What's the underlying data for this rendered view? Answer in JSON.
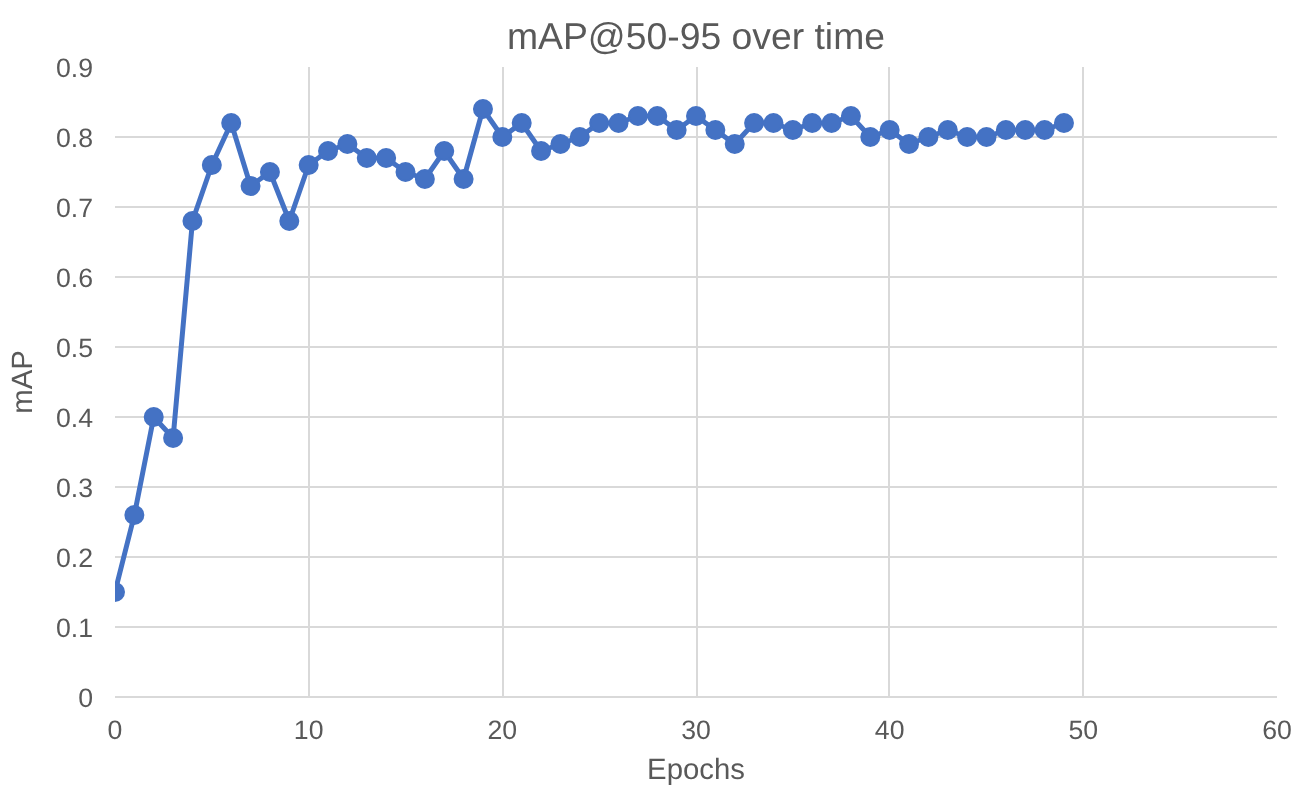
{
  "chart_data": {
    "type": "line",
    "title": "mAP@50-95 over time",
    "xlabel": "Epochs",
    "ylabel": "mAP",
    "x": [
      0,
      1,
      2,
      3,
      4,
      5,
      6,
      7,
      8,
      9,
      10,
      11,
      12,
      13,
      14,
      15,
      16,
      17,
      18,
      19,
      20,
      21,
      22,
      23,
      24,
      25,
      26,
      27,
      28,
      29,
      30,
      31,
      32,
      33,
      34,
      35,
      36,
      37,
      38,
      39,
      40,
      41,
      42,
      43,
      44,
      45,
      46,
      47,
      48,
      49
    ],
    "series": [
      {
        "color": "#4472c4",
        "values": [
          0.15,
          0.26,
          0.4,
          0.37,
          0.68,
          0.76,
          0.82,
          0.73,
          0.75,
          0.68,
          0.76,
          0.78,
          0.79,
          0.77,
          0.77,
          0.75,
          0.74,
          0.78,
          0.74,
          0.84,
          0.8,
          0.82,
          0.78,
          0.79,
          0.8,
          0.82,
          0.82,
          0.83,
          0.83,
          0.81,
          0.83,
          0.81,
          0.79,
          0.82,
          0.82,
          0.81,
          0.82,
          0.82,
          0.83,
          0.8,
          0.81,
          0.79,
          0.8,
          0.81,
          0.8,
          0.8,
          0.81,
          0.81,
          0.81,
          0.82
        ]
      }
    ],
    "xlim": [
      0,
      60
    ],
    "xticks": [
      0,
      10,
      20,
      30,
      40,
      50,
      60
    ],
    "ylim": [
      0,
      0.9
    ],
    "yticks": [
      0,
      0.1,
      0.2,
      0.3,
      0.4,
      0.5,
      0.6,
      0.7,
      0.8,
      0.9
    ],
    "grid": true,
    "marker": "circle",
    "line_style": "solid"
  }
}
